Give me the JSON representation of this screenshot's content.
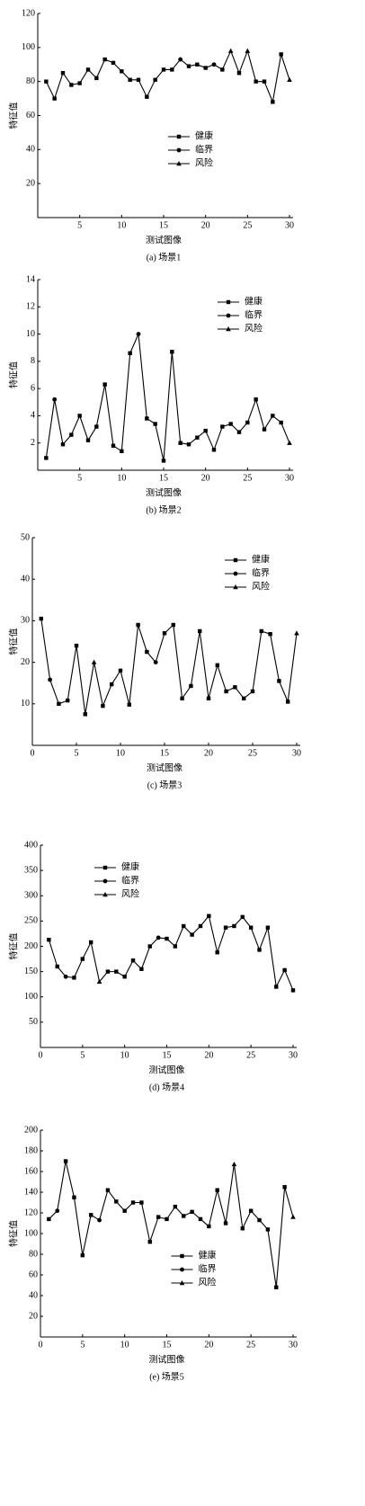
{
  "chart_data": [
    {
      "type": "line",
      "caption": "(a) 场景1",
      "xlabel": "测试图像",
      "ylabel": "特征值",
      "color": "#000000",
      "legend": "lower center",
      "xlim": [
        0,
        30
      ],
      "ylim": [
        0,
        120
      ],
      "xticks": [
        5,
        10,
        15,
        20,
        25,
        30
      ],
      "yticks": [
        20,
        40,
        60,
        80,
        100,
        120
      ],
      "series": [
        {
          "name": "健康",
          "marker": "square",
          "x": [
            1,
            2,
            3,
            4,
            5,
            6,
            7,
            8,
            9,
            10,
            11,
            12,
            13,
            14,
            15,
            16,
            18,
            19,
            20,
            22,
            24,
            26,
            27,
            28,
            29
          ],
          "values": [
            80,
            70,
            85,
            78,
            79,
            87,
            82,
            93,
            91,
            86,
            81,
            81,
            71,
            81,
            87,
            87,
            89,
            90,
            88,
            87,
            85,
            80,
            80,
            68,
            96
          ]
        },
        {
          "name": "临界",
          "marker": "circle",
          "x": [
            17,
            21
          ],
          "values": [
            93,
            90
          ]
        },
        {
          "name": "风险",
          "marker": "triangle",
          "x": [
            23,
            25,
            30
          ],
          "values": [
            98,
            98,
            81
          ]
        }
      ]
    },
    {
      "type": "line",
      "caption": "(b) 场景2",
      "xlabel": "测试图像",
      "ylabel": "特征值",
      "color": "#000000",
      "legend": "upper right",
      "xlim": [
        0,
        30
      ],
      "ylim": [
        0,
        14
      ],
      "xticks": [
        5,
        10,
        15,
        20,
        25,
        30
      ],
      "yticks": [
        2,
        4,
        6,
        8,
        10,
        12,
        14
      ],
      "series": [
        {
          "name": "健康",
          "marker": "square",
          "x": [
            1,
            3,
            4,
            5,
            6,
            7,
            8,
            9,
            10,
            11,
            13,
            14,
            15,
            16,
            17,
            18,
            19,
            20,
            21,
            22,
            23,
            24,
            25,
            26,
            27,
            28,
            29
          ],
          "values": [
            0.9,
            1.9,
            2.6,
            4,
            2.2,
            3.2,
            6.3,
            1.8,
            1.4,
            8.6,
            3.8,
            3.4,
            0.7,
            8.7,
            2,
            1.9,
            2.4,
            2.9,
            1.5,
            3.2,
            3.4,
            2.8,
            3.5,
            5.2,
            3,
            4,
            3.5
          ]
        },
        {
          "name": "临界",
          "marker": "circle",
          "x": [
            2,
            12
          ],
          "values": [
            5.2,
            10
          ]
        },
        {
          "name": "风险",
          "marker": "triangle",
          "x": [
            30
          ],
          "values": [
            2
          ]
        }
      ]
    },
    {
      "type": "line",
      "caption": "(c) 场景3",
      "xlabel": "测试图像",
      "ylabel": "特征值",
      "color": "#000000",
      "legend": "upper right",
      "xlim": [
        0,
        30
      ],
      "ylim": [
        0,
        50
      ],
      "xticks": [
        0,
        5,
        10,
        15,
        20,
        25,
        30
      ],
      "yticks": [
        10,
        20,
        30,
        40,
        50
      ],
      "series": [
        {
          "name": "健康",
          "marker": "square",
          "x": [
            1,
            3,
            4,
            5,
            6,
            8,
            9,
            10,
            11,
            12,
            13,
            15,
            16,
            17,
            18,
            19,
            20,
            21,
            22,
            23,
            24,
            25,
            26,
            27,
            28,
            29
          ],
          "values": [
            30.5,
            10,
            10.8,
            24,
            7.5,
            9.5,
            14.7,
            18,
            9.8,
            29,
            22.5,
            27,
            29,
            11.3,
            14.3,
            27.5,
            11.3,
            19.3,
            13,
            14,
            11.3,
            13,
            27.5,
            26.8,
            15.5,
            10.5
          ]
        },
        {
          "name": "临界",
          "marker": "circle",
          "x": [
            2,
            14
          ],
          "values": [
            15.8,
            20
          ]
        },
        {
          "name": "风险",
          "marker": "triangle",
          "x": [
            7,
            30
          ],
          "values": [
            20,
            27
          ]
        }
      ]
    },
    {
      "type": "line",
      "caption": "(d) 场景4",
      "xlabel": "测试图像",
      "ylabel": "特征值",
      "color": "#000000",
      "legend": "upper left",
      "xlim": [
        0,
        30
      ],
      "ylim": [
        0,
        400
      ],
      "xticks": [
        0,
        5,
        10,
        15,
        20,
        25,
        30
      ],
      "yticks": [
        50,
        100,
        150,
        200,
        250,
        300,
        350,
        400
      ],
      "series": [
        {
          "name": "健康",
          "marker": "square",
          "x": [
            1,
            2,
            4,
            5,
            6,
            8,
            9,
            10,
            11,
            12,
            13,
            15,
            16,
            17,
            18,
            19,
            20,
            21,
            22,
            23,
            24,
            25,
            26,
            27,
            28,
            29,
            30
          ],
          "values": [
            213,
            160,
            138,
            175,
            208,
            150,
            150,
            140,
            172,
            155,
            200,
            215,
            200,
            240,
            223,
            240,
            260,
            188,
            237,
            240,
            258,
            237,
            193,
            237,
            120,
            153,
            113
          ]
        },
        {
          "name": "临界",
          "marker": "circle",
          "x": [
            3,
            14
          ],
          "values": [
            140,
            217
          ]
        },
        {
          "name": "风险",
          "marker": "triangle",
          "x": [
            7
          ],
          "values": [
            130
          ]
        }
      ]
    },
    {
      "type": "line",
      "caption": "(e) 场景5",
      "xlabel": "测试图像",
      "ylabel": "特征值",
      "color": "#000000",
      "legend": "lower center",
      "xlim": [
        0,
        30
      ],
      "ylim": [
        0,
        200
      ],
      "xticks": [
        0,
        5,
        10,
        15,
        20,
        25,
        30
      ],
      "yticks": [
        20,
        40,
        60,
        80,
        100,
        120,
        140,
        160,
        180,
        200
      ],
      "series": [
        {
          "name": "健康",
          "marker": "square",
          "x": [
            1,
            3,
            4,
            5,
            6,
            8,
            9,
            10,
            11,
            12,
            13,
            14,
            15,
            16,
            17,
            18,
            19,
            20,
            21,
            22,
            24,
            25,
            26,
            27,
            28,
            29
          ],
          "values": [
            114,
            170,
            135,
            79,
            118,
            142,
            131,
            122,
            130,
            130,
            92,
            116,
            114,
            126,
            117,
            121,
            114,
            107,
            142,
            110,
            105,
            122,
            113,
            104,
            48,
            145
          ]
        },
        {
          "name": "临界",
          "marker": "circle",
          "x": [
            2,
            7
          ],
          "values": [
            122,
            113
          ]
        },
        {
          "name": "风险",
          "marker": "triangle",
          "x": [
            23,
            30
          ],
          "values": [
            167,
            116
          ]
        }
      ]
    }
  ]
}
